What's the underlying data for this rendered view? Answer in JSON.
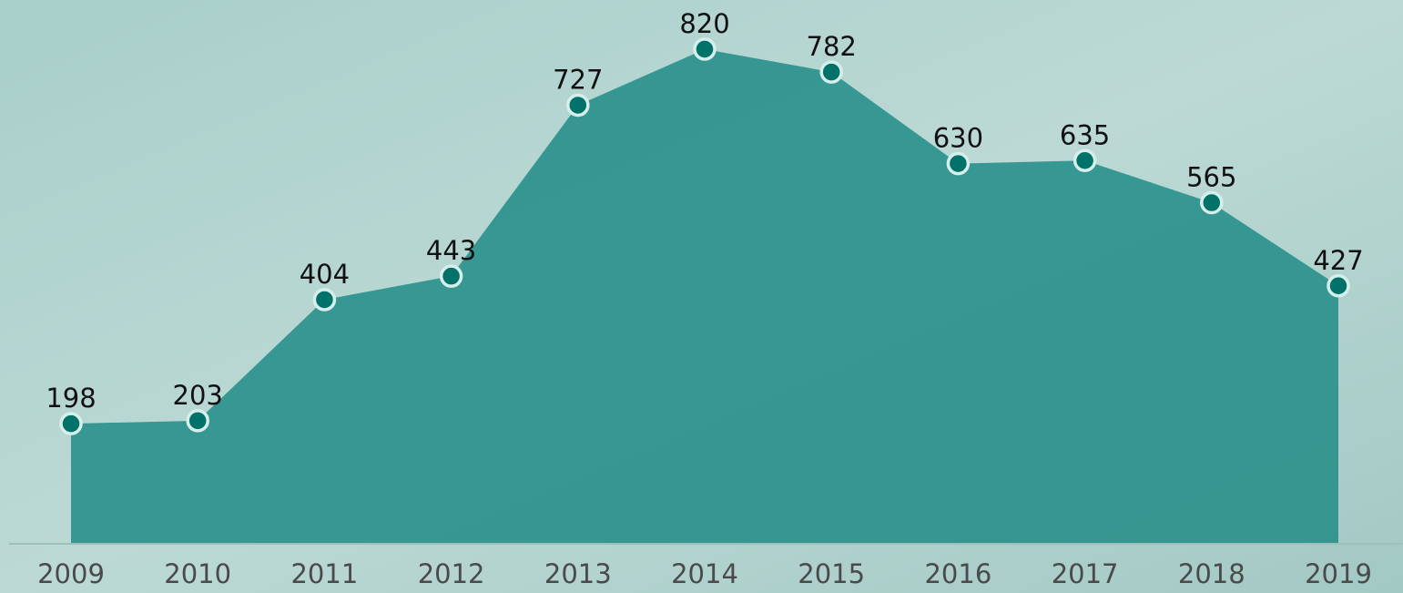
{
  "chart_data": {
    "type": "area",
    "x": [
      "2009",
      "2010",
      "2011",
      "2012",
      "2013",
      "2014",
      "2015",
      "2016",
      "2017",
      "2018",
      "2019"
    ],
    "values": [
      198,
      203,
      404,
      443,
      727,
      820,
      782,
      630,
      635,
      565,
      427
    ],
    "color": "#2f948e",
    "marker_color": "#00726a"
  }
}
